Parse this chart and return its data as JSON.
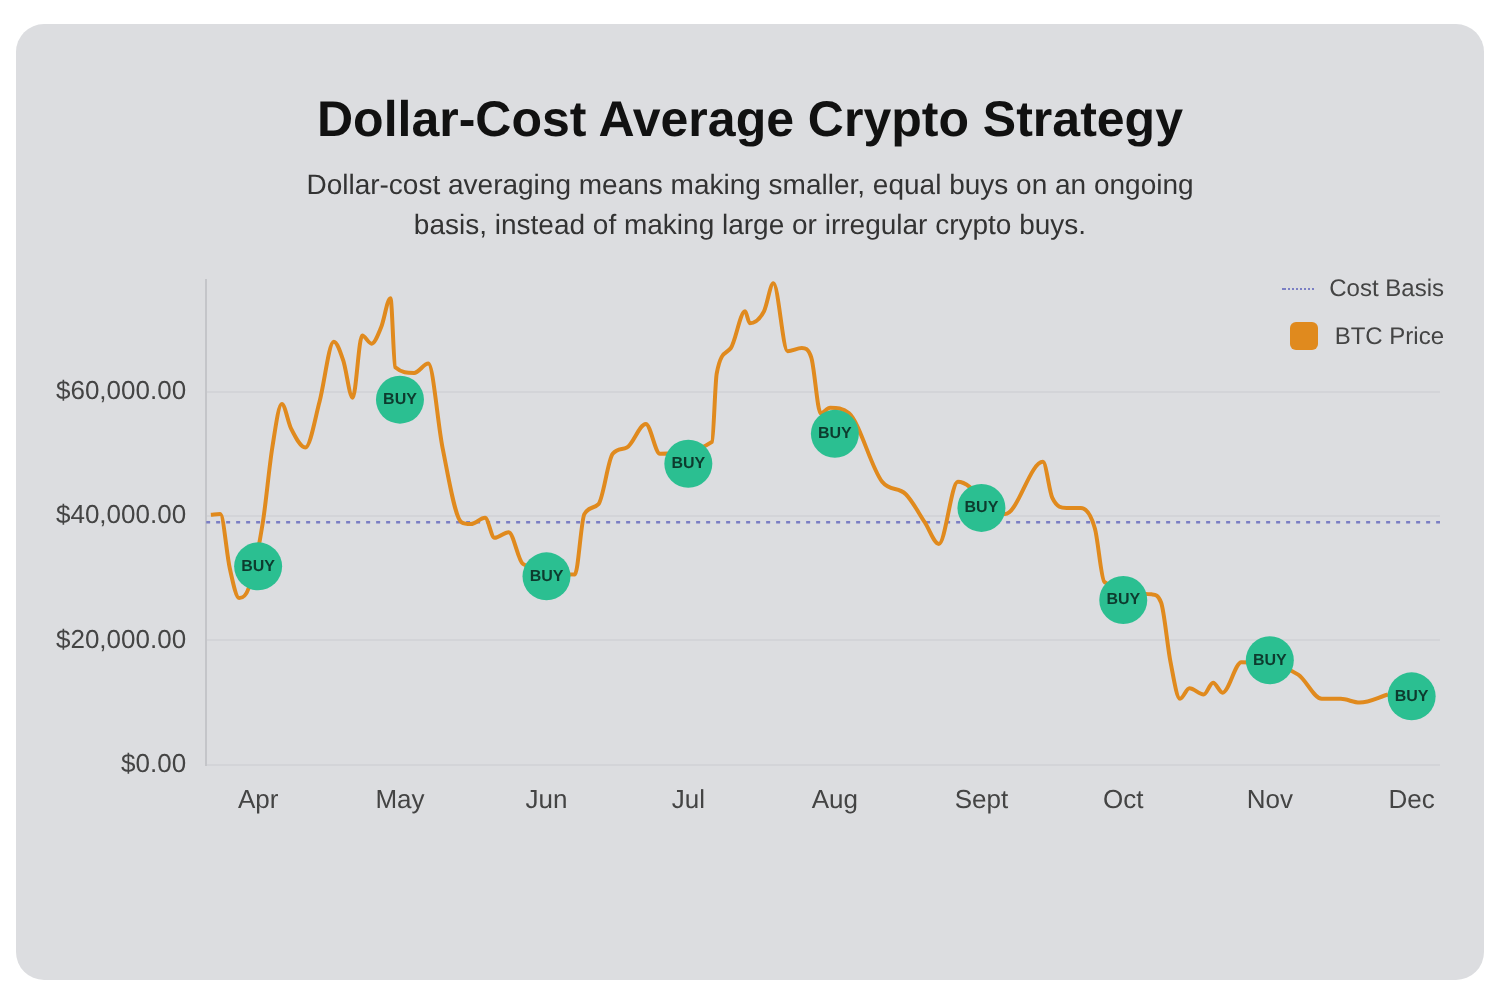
{
  "chart_data": {
    "type": "line",
    "title": "Dollar-Cost Average Crypto Strategy",
    "subtitle": "Dollar-cost averaging means making smaller, equal buys on an ongoing basis, instead of making large or irregular crypto buys.",
    "xlim": [
      "--03-21",
      "--12-07"
    ],
    "xticks": [
      {
        "value": "--04-01",
        "label": "Apr"
      },
      {
        "value": "--05-01",
        "label": "May"
      },
      {
        "value": "--06-01",
        "label": "Jun"
      },
      {
        "value": "--07-01",
        "label": "Jul"
      },
      {
        "value": "--08-01",
        "label": "Aug"
      },
      {
        "value": "--09-01",
        "label": "Sept"
      },
      {
        "value": "--10-01",
        "label": "Oct"
      },
      {
        "value": "--11-01",
        "label": "Nov"
      },
      {
        "value": "--12-01",
        "label": "Dec"
      }
    ],
    "ylim": [
      0,
      78000
    ],
    "yticks": [
      {
        "value": 0,
        "label": "$0.00"
      },
      {
        "value": 20000,
        "label": "$20,000.00"
      },
      {
        "value": 40000,
        "label": "$40,000.00"
      },
      {
        "value": 60000,
        "label": "$60,000.00"
      }
    ],
    "grid": "y",
    "legend": "top right",
    "marker": "none",
    "ref_lines": [
      {
        "axis": "y",
        "value": 39000,
        "label": "Cost Basis",
        "color": "#7b7fc4",
        "line_style": "dotted"
      }
    ],
    "series": [
      {
        "name": "BTC Price",
        "color": "#e08a1e",
        "x": [
          "--03-22",
          "--03-24",
          "--03-26",
          "--03-28",
          "--03-30",
          "--04-02",
          "--04-04",
          "--04-06",
          "--04-08",
          "--04-11",
          "--04-14",
          "--04-17",
          "--04-19",
          "--04-21",
          "--04-23",
          "--04-25",
          "--04-27",
          "--04-29",
          "--04-30",
          "--05-04",
          "--05-07",
          "--05-10",
          "--05-14",
          "--05-16",
          "--05-19",
          "--05-21",
          "--05-24",
          "--05-27",
          "--06-07",
          "--06-09",
          "--06-12",
          "--06-15",
          "--06-18",
          "--06-22",
          "--06-25",
          "--07-06",
          "--07-07",
          "--07-10",
          "--07-13",
          "--07-14",
          "--07-17",
          "--07-19",
          "--07-22",
          "--07-25",
          "--07-27",
          "--07-29",
          "--07-31",
          "--08-04",
          "--08-11",
          "--08-16",
          "--08-20",
          "--08-23",
          "--08-27",
          "--09-06",
          "--09-14",
          "--09-16",
          "--09-19",
          "--09-22",
          "--09-25",
          "--09-27",
          "--10-07",
          "--10-09",
          "--10-11",
          "--10-13",
          "--10-15",
          "--10-18",
          "--10-20",
          "--10-22",
          "--10-26",
          "--11-07",
          "--11-12",
          "--11-16",
          "--11-20",
          "--11-26"
        ],
        "values": [
          40200,
          40300,
          31600,
          26800,
          28400,
          39000,
          51000,
          58000,
          54000,
          51000,
          58400,
          68000,
          65000,
          59000,
          69000,
          67700,
          70300,
          75000,
          63900,
          63000,
          64500,
          51000,
          39000,
          38700,
          39700,
          36500,
          37400,
          32300,
          30600,
          40300,
          41900,
          50000,
          51000,
          54800,
          50000,
          51900,
          62900,
          67000,
          72900,
          71000,
          72900,
          77400,
          66500,
          67000,
          65500,
          56500,
          57400,
          56500,
          45500,
          43500,
          39000,
          35500,
          45500,
          40300,
          48700,
          42900,
          41300,
          41300,
          38000,
          29400,
          27400,
          26100,
          16500,
          10600,
          12300,
          11300,
          13200,
          11600,
          16500,
          14500,
          10600,
          10600,
          10000,
          11300
        ]
      },
      {
        "type": "scatter",
        "color": "#2bbf91",
        "marker": "circle",
        "x": [
          "--04-01",
          "--05-01",
          "--06-01",
          "--07-01",
          "--08-01",
          "--09-01",
          "--10-01",
          "--11-01",
          "--12-01"
        ],
        "values": [
          31900,
          58700,
          30300,
          48400,
          53200,
          41300,
          26500,
          16800,
          11000
        ],
        "value_labels": [
          "BUY",
          "BUY",
          "BUY",
          "BUY",
          "BUY",
          "BUY",
          "BUY",
          "BUY",
          "BUY"
        ]
      }
    ]
  }
}
